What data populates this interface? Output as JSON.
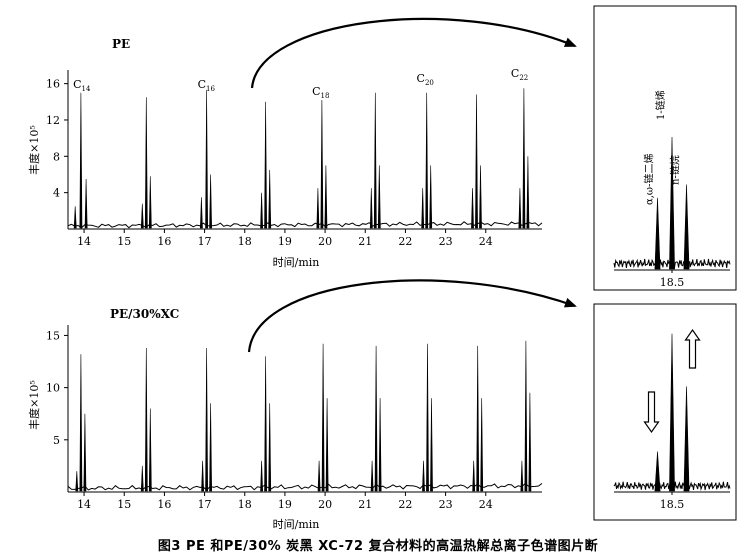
{
  "caption": "图3  PE 和PE/30% 炭黑 XC-72 复合材料的高温热解总离子色谱图片断",
  "chart_data": [
    {
      "type": "line",
      "label": "PE",
      "ylabel": "丰度×10⁵",
      "xlabel": "时间/min",
      "x_ticks": [
        "14",
        "15",
        "16",
        "17",
        "18",
        "19",
        "20",
        "21",
        "22",
        "23",
        "24"
      ],
      "y_ticks": [
        "4",
        "8",
        "12",
        "16"
      ],
      "xlim": [
        13.6,
        25.4
      ],
      "ylim": [
        0,
        17.5
      ],
      "peak_labels": [
        {
          "text": "C",
          "sub": "14",
          "x": 14.0
        },
        {
          "text": "C",
          "sub": "16",
          "x": 17.1
        },
        {
          "text": "C",
          "sub": "18",
          "x": 19.95
        },
        {
          "text": "C",
          "sub": "20",
          "x": 22.55
        },
        {
          "text": "C",
          "sub": "22",
          "x": 24.9
        }
      ],
      "peaks": [
        {
          "x": 13.78,
          "y": 2.5
        },
        {
          "x": 13.92,
          "y": 15.0
        },
        {
          "x": 14.05,
          "y": 5.5
        },
        {
          "x": 15.45,
          "y": 2.8
        },
        {
          "x": 15.55,
          "y": 14.5
        },
        {
          "x": 15.65,
          "y": 5.8
        },
        {
          "x": 16.92,
          "y": 3.5
        },
        {
          "x": 17.05,
          "y": 15.3
        },
        {
          "x": 17.15,
          "y": 6.0
        },
        {
          "x": 18.42,
          "y": 4.0
        },
        {
          "x": 18.52,
          "y": 14.0
        },
        {
          "x": 18.62,
          "y": 6.5
        },
        {
          "x": 19.82,
          "y": 4.5
        },
        {
          "x": 19.92,
          "y": 14.2
        },
        {
          "x": 20.02,
          "y": 7.0
        },
        {
          "x": 21.15,
          "y": 4.5
        },
        {
          "x": 21.25,
          "y": 15.0
        },
        {
          "x": 21.35,
          "y": 7.0
        },
        {
          "x": 22.43,
          "y": 4.5
        },
        {
          "x": 22.53,
          "y": 15.0
        },
        {
          "x": 22.63,
          "y": 7.0
        },
        {
          "x": 23.67,
          "y": 4.5
        },
        {
          "x": 23.77,
          "y": 14.8
        },
        {
          "x": 23.87,
          "y": 7.0
        },
        {
          "x": 24.85,
          "y": 4.5
        },
        {
          "x": 24.95,
          "y": 15.5
        },
        {
          "x": 25.05,
          "y": 8.0
        }
      ]
    },
    {
      "type": "line",
      "label": "PE/30%XC",
      "ylabel": "丰度×10⁵",
      "xlabel": "时间/min",
      "x_ticks": [
        "14",
        "15",
        "16",
        "17",
        "18",
        "19",
        "20",
        "21",
        "22",
        "23",
        "24"
      ],
      "y_ticks": [
        "5",
        "10",
        "15"
      ],
      "xlim": [
        13.6,
        25.4
      ],
      "ylim": [
        0,
        16
      ],
      "peaks": [
        {
          "x": 13.82,
          "y": 2.0
        },
        {
          "x": 13.92,
          "y": 13.2
        },
        {
          "x": 14.02,
          "y": 7.5
        },
        {
          "x": 15.45,
          "y": 2.5
        },
        {
          "x": 15.55,
          "y": 13.8
        },
        {
          "x": 15.65,
          "y": 8.0
        },
        {
          "x": 16.95,
          "y": 3.0
        },
        {
          "x": 17.05,
          "y": 13.8
        },
        {
          "x": 17.15,
          "y": 8.5
        },
        {
          "x": 18.42,
          "y": 3.0
        },
        {
          "x": 18.52,
          "y": 13.0
        },
        {
          "x": 18.62,
          "y": 8.5
        },
        {
          "x": 19.85,
          "y": 3.0
        },
        {
          "x": 19.95,
          "y": 14.2
        },
        {
          "x": 20.05,
          "y": 9.0
        },
        {
          "x": 21.17,
          "y": 3.0
        },
        {
          "x": 21.27,
          "y": 14.0
        },
        {
          "x": 21.37,
          "y": 9.0
        },
        {
          "x": 22.45,
          "y": 3.0
        },
        {
          "x": 22.55,
          "y": 14.2
        },
        {
          "x": 22.65,
          "y": 9.0
        },
        {
          "x": 23.7,
          "y": 3.0
        },
        {
          "x": 23.8,
          "y": 14.0
        },
        {
          "x": 23.9,
          "y": 9.0
        },
        {
          "x": 24.9,
          "y": 3.0
        },
        {
          "x": 25.0,
          "y": 14.5
        },
        {
          "x": 25.1,
          "y": 9.5
        }
      ]
    },
    {
      "type": "line",
      "label": "PE inset",
      "x_ticks": [
        "18.5"
      ],
      "xlim": [
        18.38,
        18.62
      ],
      "ylim": [
        0,
        10
      ],
      "peak_labels": [
        {
          "text": "α,ω-链二烯",
          "x": 18.47
        },
        {
          "text": "1-链烯",
          "x": 18.5
        },
        {
          "text": "n-链烷",
          "x": 18.53
        }
      ],
      "peaks": [
        {
          "x": 18.47,
          "y": 3.8
        },
        {
          "x": 18.5,
          "y": 7.0
        },
        {
          "x": 18.53,
          "y": 4.5
        }
      ]
    },
    {
      "type": "line",
      "label": "PE/30%XC inset",
      "x_ticks": [
        "18.5"
      ],
      "xlim": [
        18.38,
        18.62
      ],
      "ylim": [
        0,
        10
      ],
      "annotations": [
        {
          "text": "down-arrow",
          "x": 18.47
        },
        {
          "text": "up-arrow",
          "x": 18.53
        }
      ],
      "peaks": [
        {
          "x": 18.47,
          "y": 2.3
        },
        {
          "x": 18.5,
          "y": 9.0
        },
        {
          "x": 18.53,
          "y": 6.0
        }
      ]
    }
  ]
}
